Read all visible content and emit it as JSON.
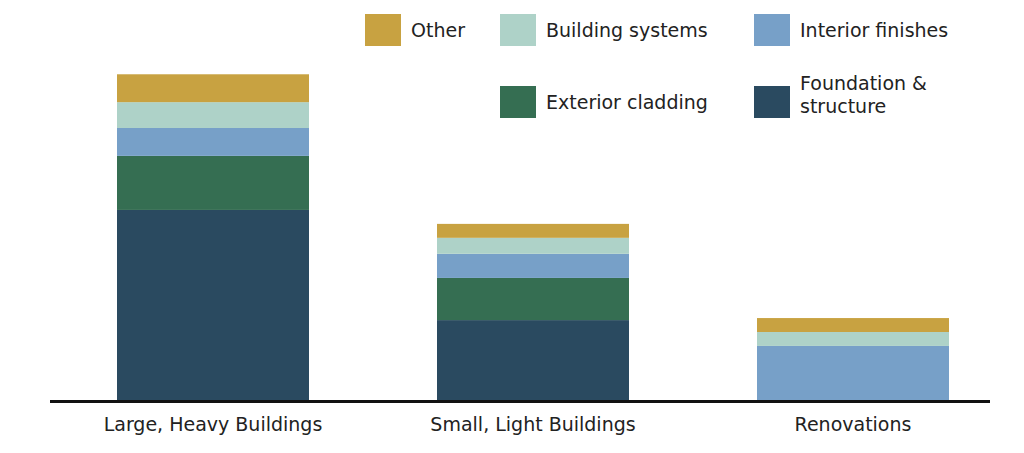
{
  "chart_data": {
    "type": "bar",
    "stacked": true,
    "tick_labels": "x",
    "grid": false,
    "categories": [
      "Large, Heavy Buildings",
      "Small, Light Buildings",
      "Renovations"
    ],
    "ylim": [
      0,
      100
    ],
    "series": [
      {
        "name": "Foundation & structure",
        "color": "#2a4a60",
        "values": [
          55.9,
          23.5,
          0
        ]
      },
      {
        "name": "Exterior cladding",
        "color": "#356e52",
        "values": [
          15.9,
          12.4,
          0
        ]
      },
      {
        "name": "Interior finishes",
        "color": "#77a0c8",
        "values": [
          8.2,
          7.1,
          15.9
        ]
      },
      {
        "name": "Building systems",
        "color": "#aed2c8",
        "values": [
          7.6,
          4.7,
          4.1
        ]
      },
      {
        "name": "Other",
        "color": "#c8a241",
        "values": [
          8.2,
          4.1,
          4.1
        ]
      }
    ],
    "legend": "top-right"
  }
}
